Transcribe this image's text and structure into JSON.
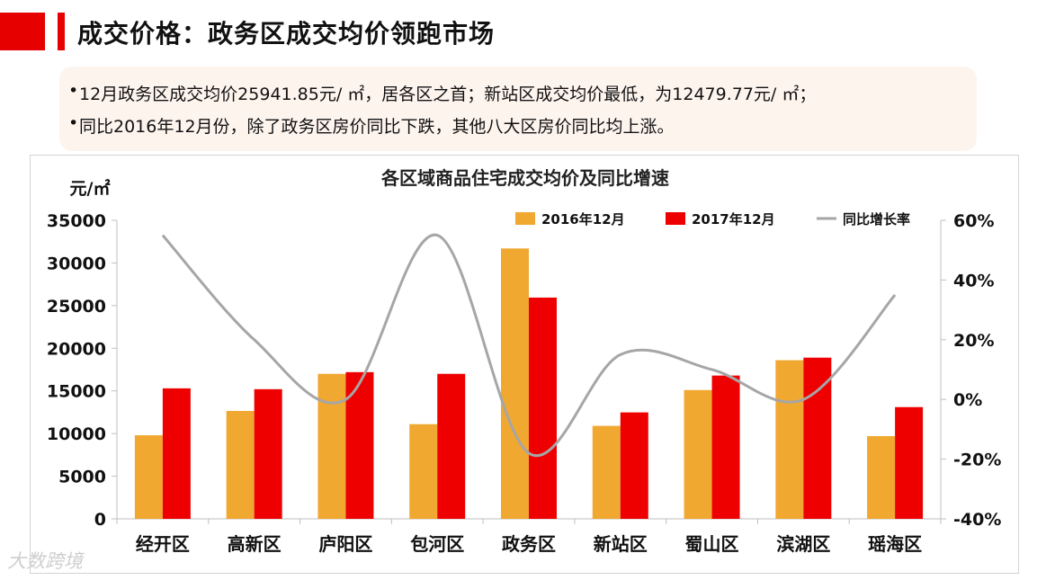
{
  "header": {
    "title": "成交价格：政务区成交均价领跑市场"
  },
  "summary": {
    "bullets": [
      "12月政务区成交均价25941.85元/ ㎡，居各区之首；新站区成交均价最低，为12479.77元/ ㎡；",
      "同比2016年12月份，除了政务区房价同比下跌，其他八大区房价同比均上涨。"
    ],
    "bullet_marker": "•"
  },
  "chart_data": {
    "type": "bar",
    "title": "各区域商品住宅成交均价及同比增速",
    "ylabel": "元/㎡",
    "categories": [
      "经开区",
      "高新区",
      "庐阳区",
      "包河区",
      "政务区",
      "新站区",
      "蜀山区",
      "滨湖区",
      "瑶海区"
    ],
    "series": [
      {
        "name": "2016年12月",
        "type": "bar",
        "axis": "left",
        "color": "#f0a830",
        "values": [
          9800,
          12650,
          17000,
          11100,
          31700,
          10900,
          15100,
          18600,
          9700
        ]
      },
      {
        "name": "2017年12月",
        "type": "bar",
        "axis": "left",
        "color": "#ee0000",
        "values": [
          15300,
          15200,
          17200,
          17000,
          25941.85,
          12479.77,
          16800,
          18900,
          13100
        ]
      },
      {
        "name": "同比增长率",
        "type": "line",
        "axis": "right",
        "color": "#a6a6a6",
        "values": [
          55,
          20,
          0,
          55,
          -18,
          15,
          10,
          0,
          35
        ]
      }
    ],
    "ylim": [
      0,
      35000
    ],
    "yticks": [
      0,
      5000,
      10000,
      15000,
      20000,
      25000,
      30000,
      35000
    ],
    "y2lim": [
      -40,
      60
    ],
    "y2ticks": [
      "-40%",
      "-20%",
      "0%",
      "20%",
      "40%",
      "60%"
    ],
    "legend": [
      "2016年12月",
      "2017年12月",
      "同比增长率"
    ],
    "legend_position": "top-right",
    "grid": false
  },
  "watermark": "大数跨境"
}
